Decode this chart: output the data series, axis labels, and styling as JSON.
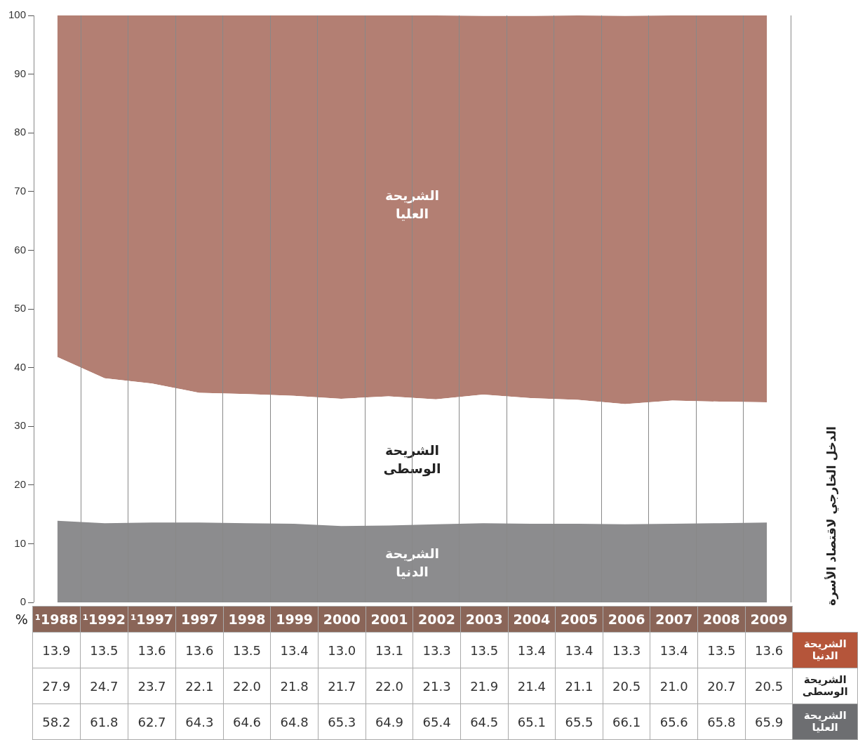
{
  "chart_data": {
    "type": "area",
    "title": "الدخل الخارجي لاقتصاد الأسرة",
    "ylabel": "%",
    "stacked": true,
    "grid": "x",
    "legend": false,
    "categories": [
      "¹1988",
      "¹1992",
      "¹1997",
      "1997",
      "1998",
      "1999",
      "2000",
      "2001",
      "2002",
      "2003",
      "2004",
      "2005",
      "2006",
      "2007",
      "2008",
      "2009"
    ],
    "ylim": [
      0,
      100
    ],
    "yticks": [
      0,
      10,
      20,
      30,
      40,
      50,
      60,
      70,
      80,
      90,
      100
    ],
    "series": [
      {
        "name": "الشريحة الدنيا",
        "color": "#8c8c8e",
        "values": [
          13.9,
          13.5,
          13.6,
          13.6,
          13.5,
          13.4,
          13.0,
          13.1,
          13.3,
          13.5,
          13.4,
          13.4,
          13.3,
          13.4,
          13.5,
          13.6
        ],
        "value_labels": [
          "13.9",
          "13.5",
          "13.6",
          "13.6",
          "13.5",
          "13.4",
          "13.0",
          "13.1",
          "13.3",
          "13.5",
          "13.4",
          "13.4",
          "13.3",
          "13.4",
          "13.5",
          "13.6"
        ]
      },
      {
        "name": "الشريحة الوسطى",
        "color": "#ffffff",
        "values": [
          27.9,
          24.7,
          23.7,
          22.1,
          22.0,
          21.8,
          21.7,
          22.0,
          21.3,
          21.9,
          21.4,
          21.1,
          20.5,
          21.0,
          20.7,
          20.5
        ],
        "value_labels": [
          "27.9",
          "24.7",
          "23.7",
          "22.1",
          "22.0",
          "21.8",
          "21.7",
          "22.0",
          "21.3",
          "21.9",
          "21.4",
          "21.1",
          "20.5",
          "21.0",
          "20.7",
          "20.5"
        ]
      },
      {
        "name": "الشريحة العليا",
        "color": "#b37f73",
        "values": [
          58.2,
          61.8,
          62.7,
          64.3,
          64.6,
          64.8,
          65.3,
          64.9,
          65.4,
          64.5,
          65.1,
          65.5,
          66.1,
          65.6,
          65.8,
          65.9
        ],
        "value_labels": [
          "58.2",
          "61.8",
          "62.7",
          "64.3",
          "64.6",
          "64.8",
          "65.3",
          "64.9",
          "65.4",
          "64.5",
          "65.1",
          "65.5",
          "66.1",
          "65.6",
          "65.8",
          "65.9"
        ]
      }
    ]
  }
}
